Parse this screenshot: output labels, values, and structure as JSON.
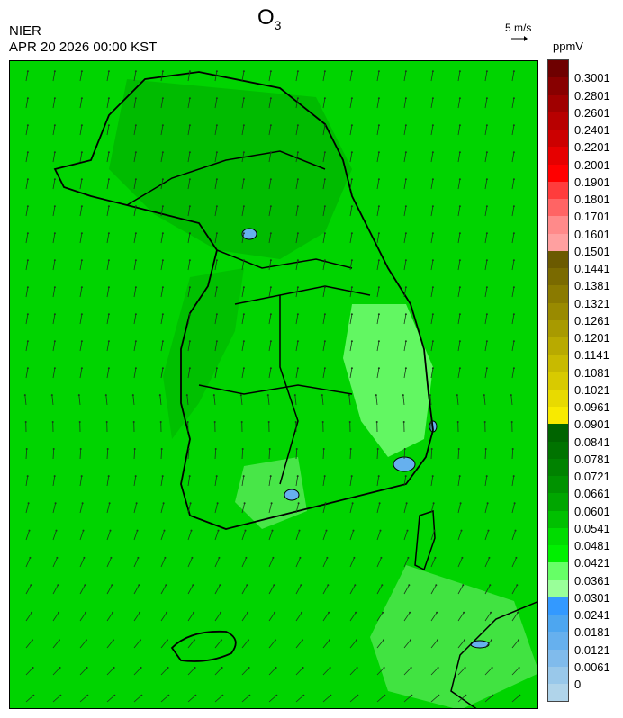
{
  "header": {
    "title_main": "O",
    "title_sub": "3",
    "organization": "NIER",
    "datetime": "APR 20 2026 00:00 KST",
    "wind_reference": "5 m/s",
    "unit": "ppmV"
  },
  "legend": {
    "labels": [
      "0.3001",
      "0.2801",
      "0.2601",
      "0.2401",
      "0.2201",
      "0.2001",
      "0.1901",
      "0.1801",
      "0.1701",
      "0.1601",
      "0.1501",
      "0.1441",
      "0.1381",
      "0.1321",
      "0.1261",
      "0.1201",
      "0.1141",
      "0.1081",
      "0.1021",
      "0.0961",
      "0.0901",
      "0.0841",
      "0.0781",
      "0.0721",
      "0.0661",
      "0.0601",
      "0.0541",
      "0.0481",
      "0.0421",
      "0.0361",
      "0.0301",
      "0.0241",
      "0.0181",
      "0.0121",
      "0.0061",
      "0"
    ],
    "colors": [
      "#6e0000",
      "#880000",
      "#a00000",
      "#b80000",
      "#cc0000",
      "#e60000",
      "#ff0000",
      "#ff3c3c",
      "#ff6464",
      "#ff8a8a",
      "#ffa0a0",
      "#6b5a00",
      "#7a6a00",
      "#8a7a00",
      "#998a00",
      "#a89a00",
      "#b8aa00",
      "#c8ba00",
      "#d8ca00",
      "#e8da00",
      "#f8ea00",
      "#006400",
      "#007300",
      "#008200",
      "#009200",
      "#00a600",
      "#00c000",
      "#00dc00",
      "#00f000",
      "#66ff66",
      "#99ff99",
      "#3399ff",
      "#4da6f0",
      "#66b0ee",
      "#80bbec",
      "#99c8ea",
      "#b0d4ea"
    ]
  },
  "map": {
    "background_color": "#00d200",
    "outline_color": "#000000"
  }
}
